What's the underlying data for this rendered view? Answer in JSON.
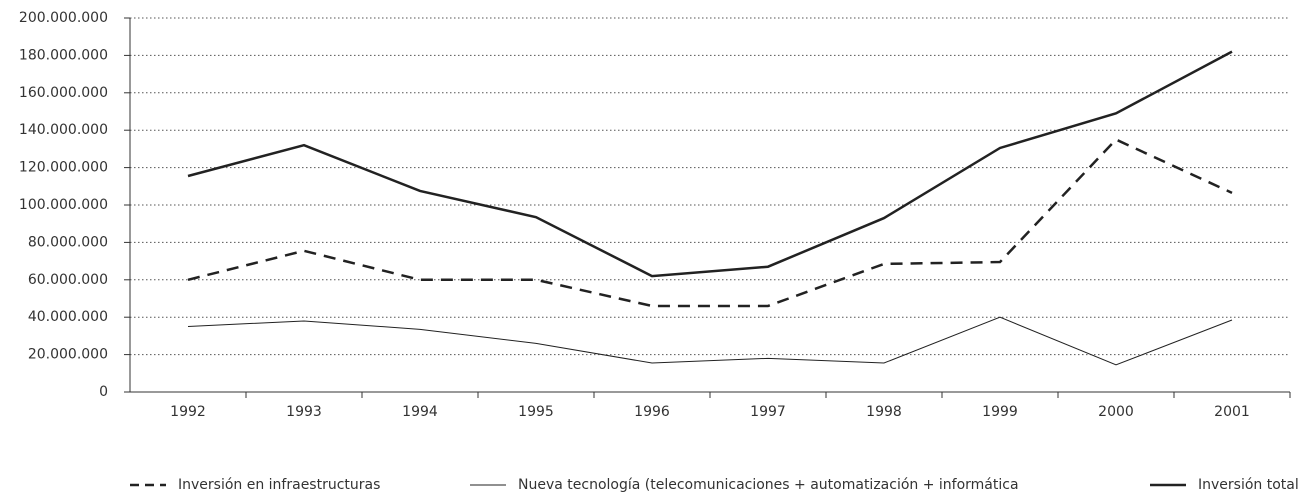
{
  "chart_data": {
    "type": "line",
    "categories": [
      "1992",
      "1993",
      "1994",
      "1995",
      "1996",
      "1997",
      "1998",
      "1999",
      "2000",
      "2001"
    ],
    "series": [
      {
        "name": "Inversión en infraestructuras",
        "color": "#222222",
        "line_style": "dashed",
        "line_width": 2.5,
        "values": [
          60000000,
          75500000,
          60000000,
          60000000,
          46000000,
          46000000,
          68500000,
          69500000,
          135000000,
          106500000
        ]
      },
      {
        "name": "Nueva tecnología (telecomunicaciones + automatización + informática",
        "color": "#222222",
        "line_style": "solid",
        "line_width": 1,
        "values": [
          35000000,
          38000000,
          33500000,
          26000000,
          15500000,
          18000000,
          15500000,
          40000000,
          14500000,
          38500000
        ]
      },
      {
        "name": "Inversión total",
        "color": "#222222",
        "line_style": "solid",
        "line_width": 2.5,
        "values": [
          115500000,
          132000000,
          107500000,
          93500000,
          62000000,
          67000000,
          93000000,
          130500000,
          149000000,
          182000000
        ]
      }
    ],
    "ylim": [
      0,
      200000000
    ],
    "yticks": [
      0,
      {
        "value": 20000000,
        "label": "20.000.000"
      },
      {
        "value": 40000000,
        "label": "40.000.000"
      },
      {
        "value": 60000000,
        "label": "60.000.000"
      },
      {
        "value": 80000000,
        "label": "80.000.000"
      },
      {
        "value": 100000000,
        "label": "100.000.000"
      },
      {
        "value": 120000000,
        "label": "120.000.000"
      },
      {
        "value": 140000000,
        "label": "140.000.000"
      },
      {
        "value": 160000000,
        "label": "160.000.000"
      },
      {
        "value": 180000000,
        "label": "180.000.000"
      },
      {
        "value": 200000000,
        "label": "200.000.000"
      }
    ],
    "grid": true,
    "legend": "bottom"
  }
}
